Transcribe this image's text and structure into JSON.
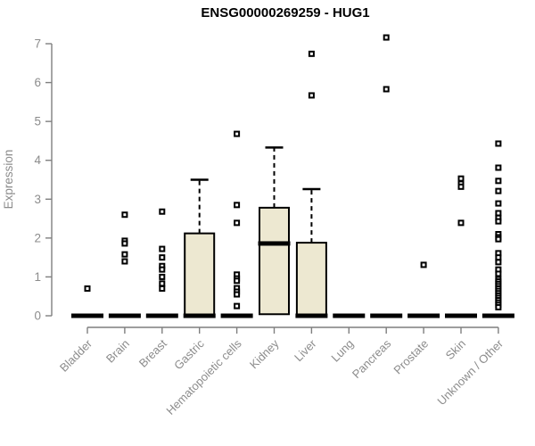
{
  "title": "ENSG00000269259 - HUG1",
  "chart_data": {
    "type": "boxplot",
    "title": "ENSG00000269259 - HUG1",
    "xlabel": "",
    "ylabel": "Expression",
    "ylim": [
      0,
      7
    ],
    "yticks": [
      0,
      1,
      2,
      3,
      4,
      5,
      6,
      7
    ],
    "grid": false,
    "legend": "none",
    "categories": [
      "Bladder",
      "Brain",
      "Breast",
      "Gastric",
      "Hematopoietic cells",
      "Kidney",
      "Liver",
      "Lung",
      "Pancreas",
      "Prostate",
      "Skin",
      "Unknown / Other"
    ],
    "boxes": [
      {
        "category": "Bladder",
        "whisker_low": 0,
        "q1": 0,
        "median": 0,
        "q3": 0,
        "whisker_high": 0,
        "outliers": [
          0.7
        ]
      },
      {
        "category": "Brain",
        "whisker_low": 0,
        "q1": 0,
        "median": 0,
        "q3": 0,
        "whisker_high": 0,
        "outliers": [
          2.6,
          1.93,
          1.86,
          1.58,
          1.4
        ]
      },
      {
        "category": "Breast",
        "whisker_low": 0,
        "q1": 0,
        "median": 0,
        "q3": 0,
        "whisker_high": 0,
        "outliers": [
          2.68,
          1.72,
          1.5,
          1.28,
          1.19,
          1.0,
          0.83,
          0.7
        ]
      },
      {
        "category": "Gastric",
        "whisker_low": 0,
        "q1": 0,
        "median": 0,
        "q3": 2.12,
        "whisker_high": 3.5,
        "outliers": []
      },
      {
        "category": "Hematopoietic cells",
        "whisker_low": 0,
        "q1": 0,
        "median": 0,
        "q3": 0,
        "whisker_high": 0,
        "outliers": [
          4.68,
          2.85,
          2.39,
          1.06,
          0.96,
          0.9,
          0.71,
          0.62,
          0.55,
          0.25
        ]
      },
      {
        "category": "Kidney",
        "whisker_low": 0.04,
        "q1": 0.04,
        "median": 1.86,
        "q3": 2.78,
        "whisker_high": 4.33,
        "outliers": []
      },
      {
        "category": "Liver",
        "whisker_low": 0,
        "q1": 0,
        "median": 0,
        "q3": 1.88,
        "whisker_high": 3.26,
        "outliers": [
          6.74,
          5.67
        ]
      },
      {
        "category": "Lung",
        "whisker_low": 0,
        "q1": 0,
        "median": 0,
        "q3": 0,
        "whisker_high": 0,
        "outliers": []
      },
      {
        "category": "Pancreas",
        "whisker_low": 0,
        "q1": 0,
        "median": 0,
        "q3": 0,
        "whisker_high": 0,
        "outliers": [
          7.16,
          5.83
        ]
      },
      {
        "category": "Prostate",
        "whisker_low": 0,
        "q1": 0,
        "median": 0,
        "q3": 0,
        "whisker_high": 0,
        "outliers": [
          1.31
        ]
      },
      {
        "category": "Skin",
        "whisker_low": 0,
        "q1": 0,
        "median": 0,
        "q3": 0,
        "whisker_high": 0,
        "outliers": [
          3.53,
          3.4,
          3.32,
          2.39
        ]
      },
      {
        "category": "Unknown / Other",
        "whisker_low": 0,
        "q1": 0,
        "median": 0,
        "q3": 0,
        "whisker_high": 0,
        "outliers": [
          4.43,
          3.81,
          3.47,
          3.21,
          2.89,
          2.64,
          2.52,
          2.43,
          2.1,
          2.02,
          1.97,
          1.61,
          1.5,
          1.38,
          1.19,
          1.08,
          0.94,
          0.88,
          0.82,
          0.76,
          0.7,
          0.64,
          0.58,
          0.52,
          0.46,
          0.4,
          0.34,
          0.28,
          0.22
        ]
      }
    ],
    "colors": {
      "background": "#ffffff",
      "box_fill": "#ede8d1",
      "box_border": "#000000",
      "median": "#000000",
      "whisker": "#000000",
      "outlier_border": "#000000",
      "outlier_fill": "#ffffff",
      "axis_line": "#7f7f7f",
      "tick_label": "#8c8c8c",
      "title": "#000000"
    }
  }
}
